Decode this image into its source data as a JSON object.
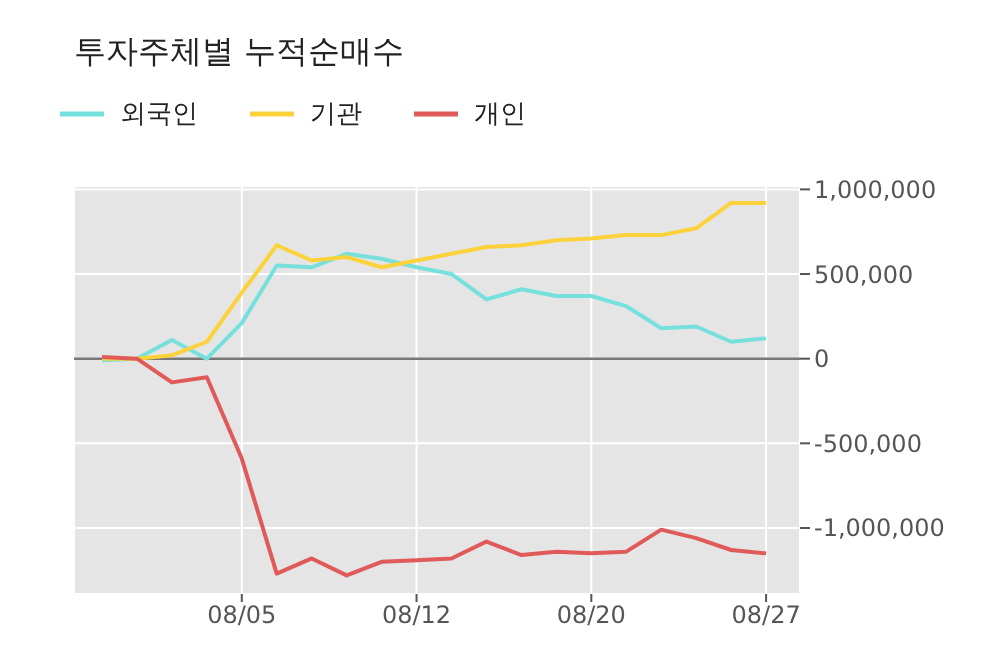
{
  "chart_data": {
    "type": "line",
    "title": "투자주체별 누적순매수",
    "categories": [
      null,
      null,
      null,
      null,
      "08/05",
      null,
      null,
      null,
      null,
      "08/12",
      null,
      null,
      null,
      null,
      "08/20",
      null,
      null,
      null,
      null,
      "08/27"
    ],
    "series": [
      {
        "name": "외국인",
        "color": "#76e0dc",
        "values": [
          -10000,
          0,
          110000,
          0,
          210000,
          550000,
          540000,
          620000,
          590000,
          540000,
          500000,
          350000,
          410000,
          370000,
          370000,
          310000,
          180000,
          190000,
          100000,
          120000
        ]
      },
      {
        "name": "기관",
        "color": "#fcd23c",
        "values": [
          0,
          0,
          20000,
          100000,
          390000,
          670000,
          580000,
          600000,
          540000,
          580000,
          620000,
          660000,
          670000,
          700000,
          710000,
          730000,
          730000,
          770000,
          920000,
          920000
        ]
      },
      {
        "name": "개인",
        "color": "#e05a5a",
        "values": [
          10000,
          0,
          -140000,
          -110000,
          -590000,
          -1270000,
          -1180000,
          -1280000,
          -1200000,
          -1190000,
          -1180000,
          -1080000,
          -1160000,
          -1140000,
          -1150000,
          -1140000,
          -1010000,
          -1060000,
          -1130000,
          -1150000
        ]
      }
    ],
    "ylim": [
      -1390000,
      1020000
    ],
    "yticks": [
      {
        "value": -1000000,
        "label": "-1,000,000"
      },
      {
        "value": -500000,
        "label": "-500,000"
      },
      0,
      {
        "value": 500000,
        "label": "500,000"
      },
      {
        "value": 1000000,
        "label": "1,000,000"
      }
    ],
    "ref_lines": [
      {
        "axis": "y",
        "value": 0,
        "color": "#777777"
      }
    ],
    "grid": true,
    "legend": "top left",
    "marker": "none",
    "line_style": "solid"
  }
}
